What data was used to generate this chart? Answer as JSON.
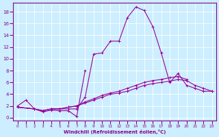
{
  "xlabel": "Windchill (Refroidissement éolien,°C)",
  "bg_color": "#cceeff",
  "line_color": "#990099",
  "xlim": [
    -0.5,
    23.5
  ],
  "ylim": [
    -0.5,
    19.5
  ],
  "yticks": [
    0,
    2,
    4,
    6,
    8,
    10,
    12,
    14,
    16,
    18
  ],
  "xticks": [
    0,
    1,
    2,
    3,
    4,
    5,
    6,
    7,
    8,
    9,
    10,
    11,
    12,
    13,
    14,
    15,
    16,
    17,
    18,
    19,
    20,
    21,
    22,
    23
  ],
  "curve_spike_x": [
    0,
    1,
    2,
    3,
    4,
    5,
    6,
    7,
    8
  ],
  "curve_spike_y": [
    2.0,
    3.0,
    1.5,
    1.0,
    1.3,
    1.2,
    1.2,
    0.2,
    8.0
  ],
  "curve_main_x": [
    0,
    2,
    3,
    4,
    5,
    6,
    7,
    8,
    9,
    10,
    11,
    12,
    13,
    14,
    15,
    16,
    17,
    18,
    19,
    20,
    21,
    22,
    23
  ],
  "curve_main_y": [
    1.8,
    1.5,
    1.2,
    1.5,
    1.5,
    1.5,
    1.5,
    3.5,
    10.8,
    11.0,
    13.0,
    13.0,
    17.0,
    18.8,
    18.2,
    15.5,
    11.0,
    6.0,
    7.5,
    5.5,
    5.0,
    4.5,
    4.5
  ],
  "curve_low1_x": [
    0,
    2,
    3,
    4,
    5,
    6,
    7,
    8,
    9,
    10,
    11,
    12,
    13,
    14,
    15,
    16,
    17,
    18,
    19,
    20,
    21,
    22,
    23
  ],
  "curve_low1_y": [
    1.8,
    1.5,
    1.2,
    1.5,
    1.5,
    1.8,
    2.0,
    2.5,
    3.0,
    3.5,
    4.0,
    4.2,
    4.5,
    5.0,
    5.5,
    5.8,
    6.0,
    6.2,
    6.5,
    6.3,
    5.5,
    5.0,
    4.5
  ],
  "curve_low2_x": [
    0,
    2,
    3,
    4,
    5,
    6,
    7,
    8,
    9,
    10,
    11,
    12,
    13,
    14,
    15,
    16,
    17,
    18,
    19,
    20
  ],
  "curve_low2_y": [
    1.8,
    1.5,
    1.2,
    1.5,
    1.5,
    1.8,
    2.0,
    2.7,
    3.2,
    3.8,
    4.2,
    4.5,
    5.0,
    5.5,
    6.0,
    6.3,
    6.5,
    6.8,
    7.0,
    6.5
  ]
}
